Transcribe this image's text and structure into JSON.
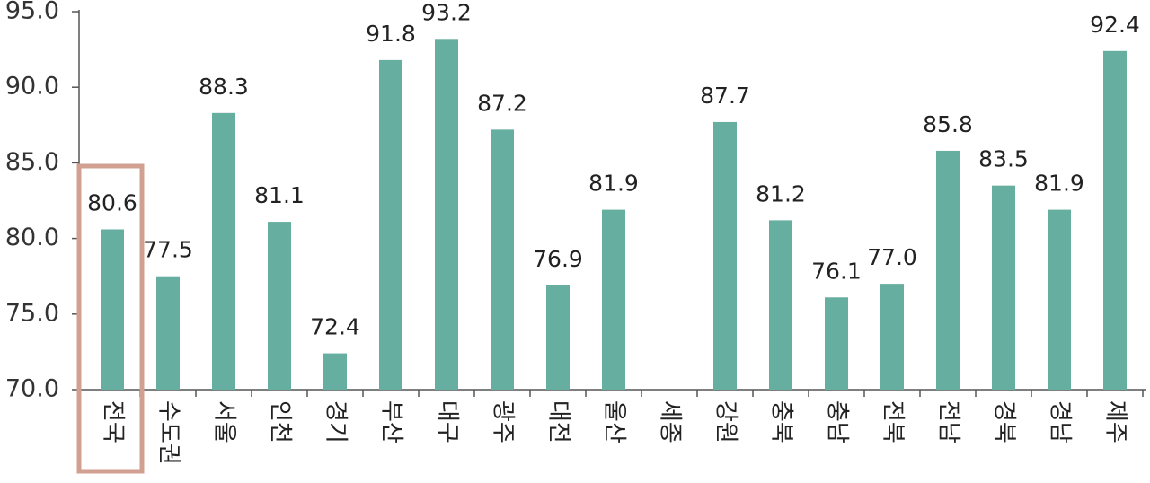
{
  "chart_data": {
    "type": "bar",
    "categories": [
      "전국",
      "수도권",
      "서울",
      "인천",
      "경기",
      "부산",
      "대구",
      "광주",
      "대전",
      "울산",
      "세종",
      "강원",
      "충북",
      "충남",
      "전북",
      "전남",
      "경북",
      "경남",
      "제주"
    ],
    "values": [
      80.6,
      77.5,
      88.3,
      81.1,
      72.4,
      91.8,
      93.2,
      87.2,
      76.9,
      81.9,
      null,
      87.7,
      81.2,
      76.1,
      77.0,
      85.8,
      83.5,
      81.9,
      92.4
    ],
    "value_labels": [
      "80.6",
      "77.5",
      "88.3",
      "81.1",
      "72.4",
      "91.8",
      "93.2",
      "87.2",
      "76.9",
      "81.9",
      null,
      "87.7",
      "81.2",
      "76.1",
      "77.0",
      "85.8",
      "83.5",
      "81.9",
      "92.4"
    ],
    "color": "#66ae9f",
    "ylim": [
      70,
      95
    ],
    "yticks": [
      {
        "value": 70,
        "label": "70.0"
      },
      {
        "value": 75,
        "label": "75.0"
      },
      {
        "value": 80,
        "label": "80.0"
      },
      {
        "value": 85,
        "label": "85.0"
      },
      {
        "value": 90,
        "label": "90.0"
      },
      {
        "value": 95,
        "label": "95.0"
      }
    ],
    "grid": false
  }
}
